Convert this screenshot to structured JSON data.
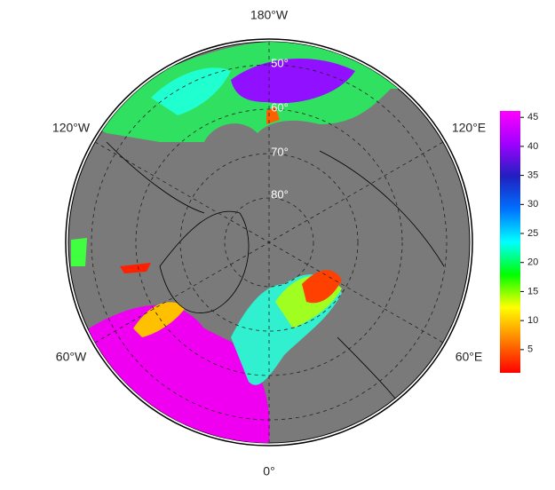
{
  "map": {
    "longitude_labels": {
      "top": "180°W",
      "upper_left": "120°W",
      "upper_right": "120°E",
      "lower_left": "60°W",
      "lower_right": "60°E",
      "bottom": "0°"
    },
    "latitude_labels": [
      "50°",
      "60°",
      "70°",
      "80°"
    ],
    "colorbar": {
      "range": [
        1,
        46.1
      ],
      "ticks": [
        5,
        10,
        15,
        20,
        25,
        30,
        35,
        40,
        45
      ],
      "colors": [
        "#ff0000",
        "#ff8000",
        "#ffff00",
        "#00ff00",
        "#00ffff",
        "#0070ff",
        "#2020c0",
        "#a000ff",
        "#ff00ff"
      ]
    }
  }
}
